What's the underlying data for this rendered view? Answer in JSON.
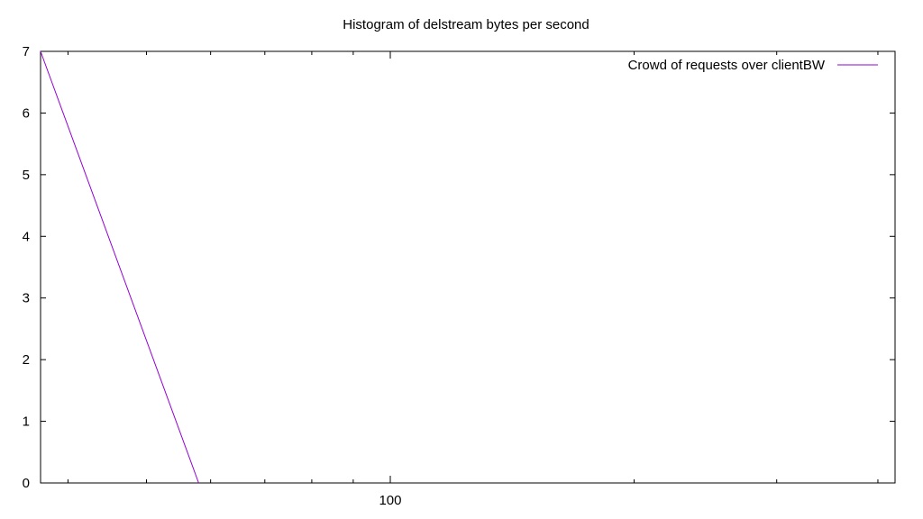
{
  "chart_data": {
    "type": "line",
    "title": "Histogram of delstream bytes per second",
    "xlabel": "",
    "ylabel": "",
    "x_scale": "log",
    "xlim": [
      37,
      420
    ],
    "ylim": [
      0,
      7
    ],
    "x_ticks": [
      100
    ],
    "x_tick_labels": [
      "100"
    ],
    "y_ticks": [
      0,
      1,
      2,
      3,
      4,
      5,
      6,
      7
    ],
    "y_tick_labels": [
      "0",
      "1",
      "2",
      "3",
      "4",
      "5",
      "6",
      "7"
    ],
    "grid": false,
    "legend_position": "top-right",
    "series": [
      {
        "name": "Crowd of requests over clientBW",
        "color": "#9400d3",
        "x": [
          37,
          58
        ],
        "y": [
          7,
          0
        ]
      }
    ]
  }
}
